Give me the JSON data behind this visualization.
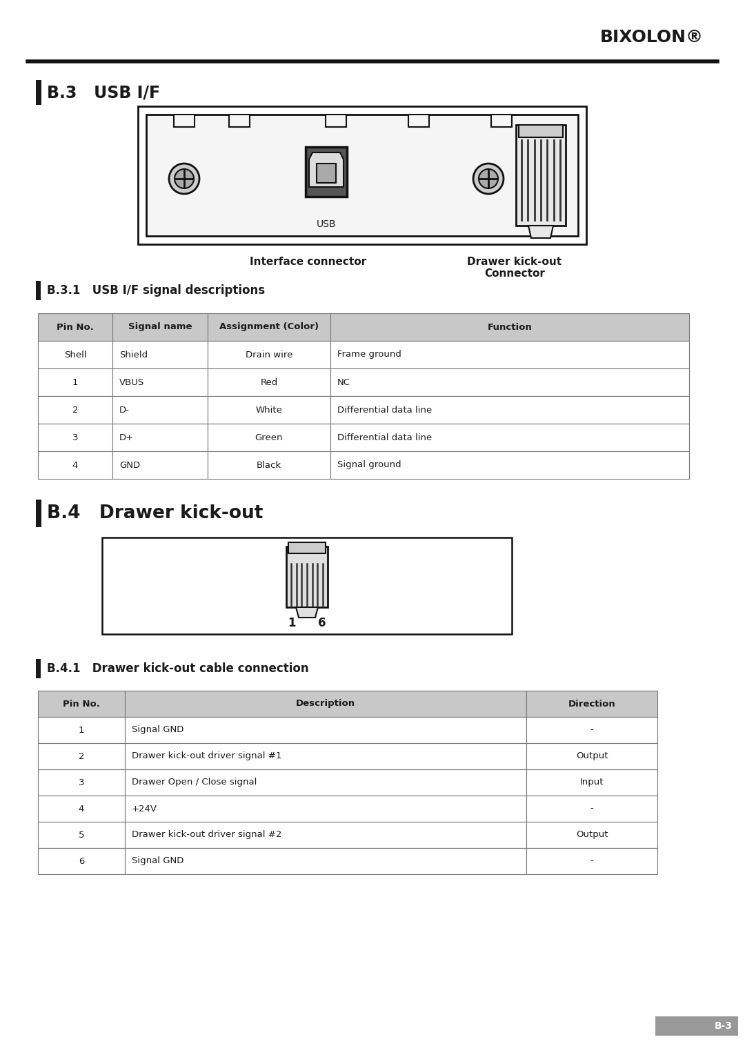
{
  "bixolon_text": "BIXOLON®",
  "section_b3_title": "B.3   USB I/F",
  "section_b31_title": "B.3.1   USB I/F signal descriptions",
  "section_b4_title": "B.4   Drawer kick-out",
  "section_b41_title": "B.4.1   Drawer kick-out cable connection",
  "footer_text": "B-3",
  "usb_table_headers": [
    "Pin No.",
    "Signal name",
    "Assignment (Color)",
    "Function"
  ],
  "usb_table_rows": [
    [
      "Shell",
      "Shield",
      "Drain wire",
      "Frame ground"
    ],
    [
      "1",
      "VBUS",
      "Red",
      "NC"
    ],
    [
      "2",
      "D-",
      "White",
      "Differential data line"
    ],
    [
      "3",
      "D+",
      "Green",
      "Differential data line"
    ],
    [
      "4",
      "GND",
      "Black",
      "Signal ground"
    ]
  ],
  "drawer_table_headers": [
    "Pin No.",
    "Description",
    "Direction"
  ],
  "drawer_table_rows": [
    [
      "1",
      "Signal GND",
      "-"
    ],
    [
      "2",
      "Drawer kick-out driver signal #1",
      "Output"
    ],
    [
      "3",
      "Drawer Open / Close signal",
      "Input"
    ],
    [
      "4",
      "+24V",
      "-"
    ],
    [
      "5",
      "Drawer kick-out driver signal #2",
      "Output"
    ],
    [
      "6",
      "Signal GND",
      "-"
    ]
  ],
  "header_bg": "#c8c8c8",
  "row_bg_white": "#ffffff",
  "border_color": "#777777",
  "text_color": "#1a1a1a",
  "title_bar_color": "#1a1a1a",
  "bg_color": "#ffffff",
  "interface_label": "Interface connector",
  "drawer_connector_label": "Drawer kick-out\nConnector",
  "usb_label": "USB",
  "line_color": "#111111"
}
